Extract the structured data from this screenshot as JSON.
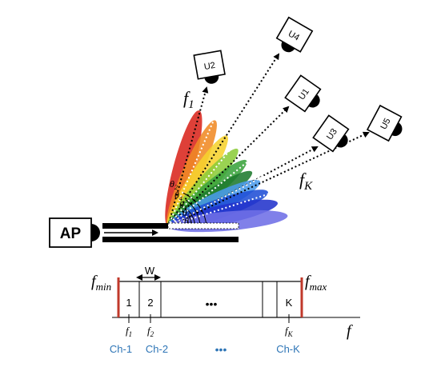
{
  "ap": {
    "label": "AP"
  },
  "users": [
    {
      "label": "U2"
    },
    {
      "label": "U4"
    },
    {
      "label": "U1"
    },
    {
      "label": "U3"
    },
    {
      "label": "U5"
    }
  ],
  "beam_labels": {
    "f1_base": "f",
    "f1_sub": "1",
    "fK_base": "f",
    "fK_sub": "K"
  },
  "angle_labels": [
    {
      "base": "θ",
      "sub": "2"
    },
    {
      "base": "θ",
      "sub": "4"
    },
    {
      "base": "θ",
      "sub": "1"
    },
    {
      "base": "θ",
      "sub": "3"
    },
    {
      "base": "θ",
      "sub": "5"
    }
  ],
  "beam_colors": [
    "#d9261c",
    "#f08a24",
    "#f6d22e",
    "#8ccc3a",
    "#3aa33c",
    "#1e7a2e",
    "#4a9bea",
    "#1f4fd6",
    "#2233cc",
    "#6e6ee6"
  ],
  "spectrum": {
    "fmin_base": "f",
    "fmin_sub": "min",
    "fmax_base": "f",
    "fmax_sub": "max",
    "width_label": "W",
    "channel_numbers": [
      "1",
      "2",
      "K"
    ],
    "ellipsis": "•••",
    "axis_label": "f",
    "freq_labels": [
      {
        "base": "f",
        "sub": "1"
      },
      {
        "base": "f",
        "sub": "2"
      },
      {
        "base": "f",
        "sub": "K"
      }
    ],
    "channel_names": [
      "Ch-1",
      "Ch-2",
      "Ch-K"
    ],
    "channel_ellipsis": "•••",
    "edge_color": "#c0392b",
    "channel_name_color": "#2e75b6"
  }
}
